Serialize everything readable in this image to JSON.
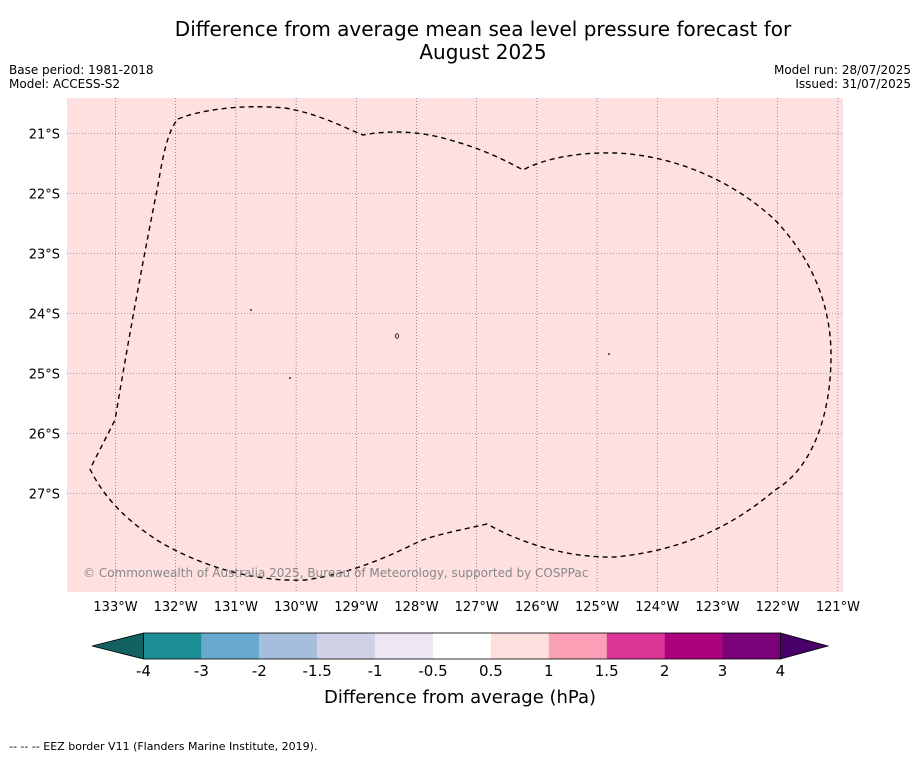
{
  "header": {
    "title_line1": "Difference from average mean sea level pressure forecast for",
    "title_line2": "August 2025",
    "base_period": "Base period: 1981-2018",
    "model": "Model: ACCESS-S2",
    "model_run": "Model run: 28/07/2025",
    "issued": "Issued: 31/07/2025"
  },
  "map": {
    "fill_color": "#fde0df",
    "lon_labels": [
      "133°W",
      "132°W",
      "131°W",
      "130°W",
      "129°W",
      "128°W",
      "127°W",
      "126°W",
      "125°W",
      "124°W",
      "123°W",
      "122°W",
      "121°W"
    ],
    "lat_labels": [
      "21°S",
      "22°S",
      "23°S",
      "24°S",
      "25°S",
      "26°S",
      "27°S"
    ],
    "copyright": "© Commonwealth of Australia 2025, Bureau of Meteorology, supported by COSPPac"
  },
  "colorbar": {
    "colors": [
      "#12635f",
      "#1b8e95",
      "#67a9cf",
      "#a6bddb",
      "#d0d1e6",
      "#ece7f2",
      "#ffffff",
      "#fde0dd",
      "#fa9fb5",
      "#dd3497",
      "#ae017e",
      "#7a0177",
      "#49006a"
    ],
    "tick_labels": [
      "-4",
      "-3",
      "-2",
      "-1.5",
      "-1",
      "-0.5",
      "0.5",
      "1",
      "1.5",
      "2",
      "3",
      "4"
    ],
    "label": "Difference from average (hPa)"
  },
  "footnote": "--  --  -- EEZ border V11 (Flanders Marine Institute, 2019)."
}
